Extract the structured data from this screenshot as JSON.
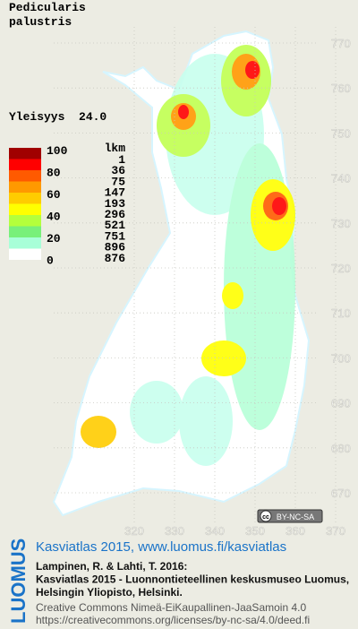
{
  "title": [
    "Pedicularis",
    "palustris"
  ],
  "frequency": "Yleisyys  24.0",
  "legend": {
    "scale_labels": [
      "100",
      "80",
      "60",
      "40",
      "20",
      "0"
    ],
    "count_header": "lkm",
    "counts": [
      "1",
      "36",
      "75",
      "147",
      "193",
      "296",
      "521",
      "751",
      "896",
      "876"
    ],
    "colors": [
      "#a00000",
      "#ff0000",
      "#ff5a00",
      "#ff9900",
      "#ffcc00",
      "#ffff00",
      "#b4ff3c",
      "#78f07a",
      "#a8ffd8",
      "#ffffff"
    ]
  },
  "axes": {
    "y_ticks": [
      "770",
      "760",
      "750",
      "740",
      "730",
      "720",
      "710",
      "700",
      "690",
      "680",
      "670"
    ],
    "x_ticks": [
      "320",
      "330",
      "340",
      "350",
      "360",
      "370"
    ]
  },
  "badge": {
    "icon": "cc",
    "text": "BY-NC-SA"
  },
  "footer": {
    "brand": "LUOMUS",
    "headline": "Kasviatlas 2015, www.luomus.fi/kasviatlas",
    "citation": [
      "Lampinen, R. & Lahti, T. 2016:",
      "Kasviatlas 2015 - Luonnontieteellinen keskusmuseo Luomus,",
      "Helsingin Yliopisto, Helsinki."
    ],
    "license": [
      "Creative Commons Nimeä-EiKaupallinen-JaaSamoin 4.0",
      "https://creativecommons.org/licenses/by-nc-sa/4.0/deed.fi"
    ]
  }
}
